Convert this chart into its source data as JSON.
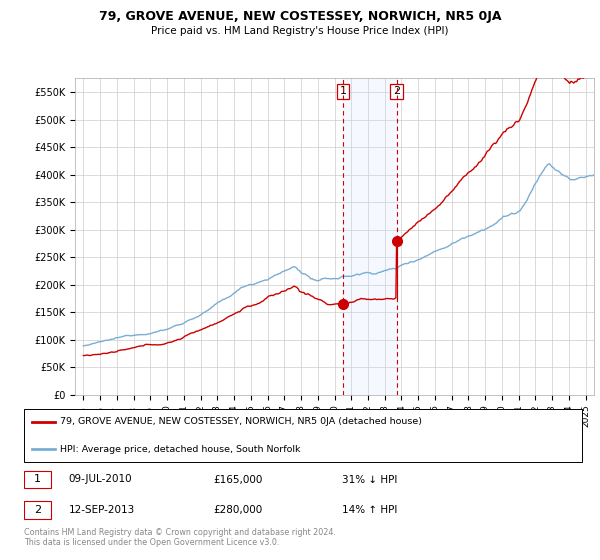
{
  "title": "79, GROVE AVENUE, NEW COSTESSEY, NORWICH, NR5 0JA",
  "subtitle": "Price paid vs. HM Land Registry's House Price Index (HPI)",
  "hpi_label": "HPI: Average price, detached house, South Norfolk",
  "property_label": "79, GROVE AVENUE, NEW COSTESSEY, NORWICH, NR5 0JA (detached house)",
  "transaction1_date": "09-JUL-2010",
  "transaction1_price": 165000,
  "transaction1_hpi": "31% ↓ HPI",
  "transaction2_date": "12-SEP-2013",
  "transaction2_price": 280000,
  "transaction2_hpi": "14% ↑ HPI",
  "transaction1_x": 2010.52,
  "transaction2_x": 2013.71,
  "ylim_min": 0,
  "ylim_max": 575000,
  "xlim_min": 1994.5,
  "xlim_max": 2025.5,
  "hpi_color": "#7aadd4",
  "property_color": "#cc0000",
  "vline_color": "#cc0000",
  "shade_color": "#ddeeff",
  "background_color": "#ffffff",
  "grid_color": "#cccccc",
  "footer_text": "Contains HM Land Registry data © Crown copyright and database right 2024.\nThis data is licensed under the Open Government Licence v3.0.",
  "copyright_color": "#888888"
}
